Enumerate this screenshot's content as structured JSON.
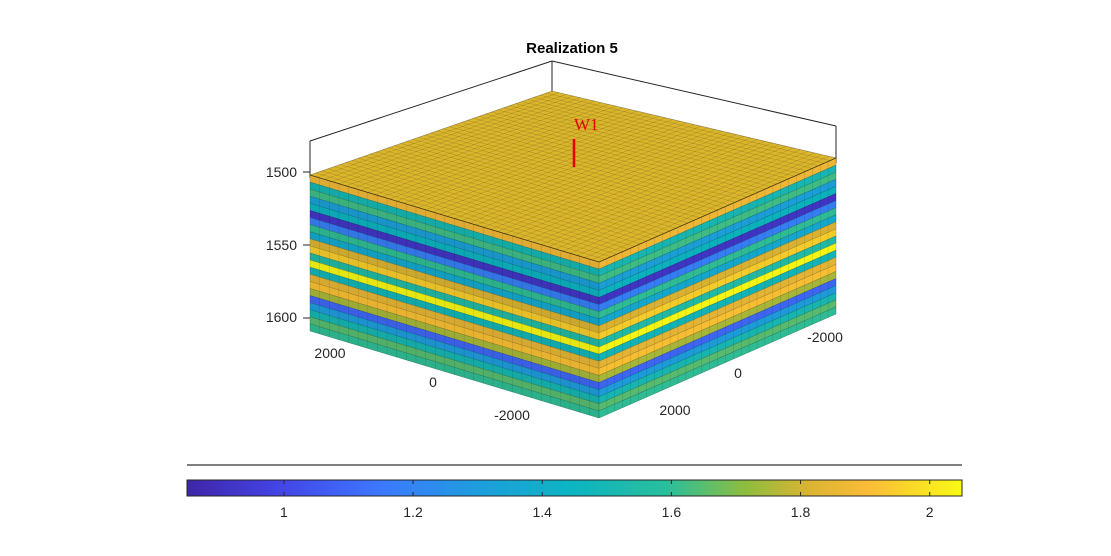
{
  "chart_data": {
    "type": "3d-layered-grid",
    "title": "Realization 5",
    "z_axis": {
      "ticks": [
        1500,
        1550,
        1600
      ],
      "reversed": true
    },
    "x_axis": {
      "ticks": [
        2000,
        0,
        -2000
      ]
    },
    "y_axis": {
      "ticks": [
        -2000,
        0,
        2000
      ]
    },
    "layers": [
      1.88,
      1.5,
      1.62,
      1.32,
      1.45,
      0.92,
      1.18,
      1.6,
      1.38,
      1.82,
      1.95,
      1.55,
      2.05,
      1.48,
      1.85,
      1.92,
      1.75,
      1.1,
      1.3,
      1.5,
      1.65,
      1.6
    ],
    "well": {
      "name": "W1",
      "color": "#ff0000"
    },
    "colorbar": {
      "ticks": [
        "1",
        "1.2",
        "1.4",
        "1.6",
        "1.8",
        "2"
      ],
      "range": [
        0.85,
        2.05
      ],
      "colormap": "parula"
    }
  }
}
